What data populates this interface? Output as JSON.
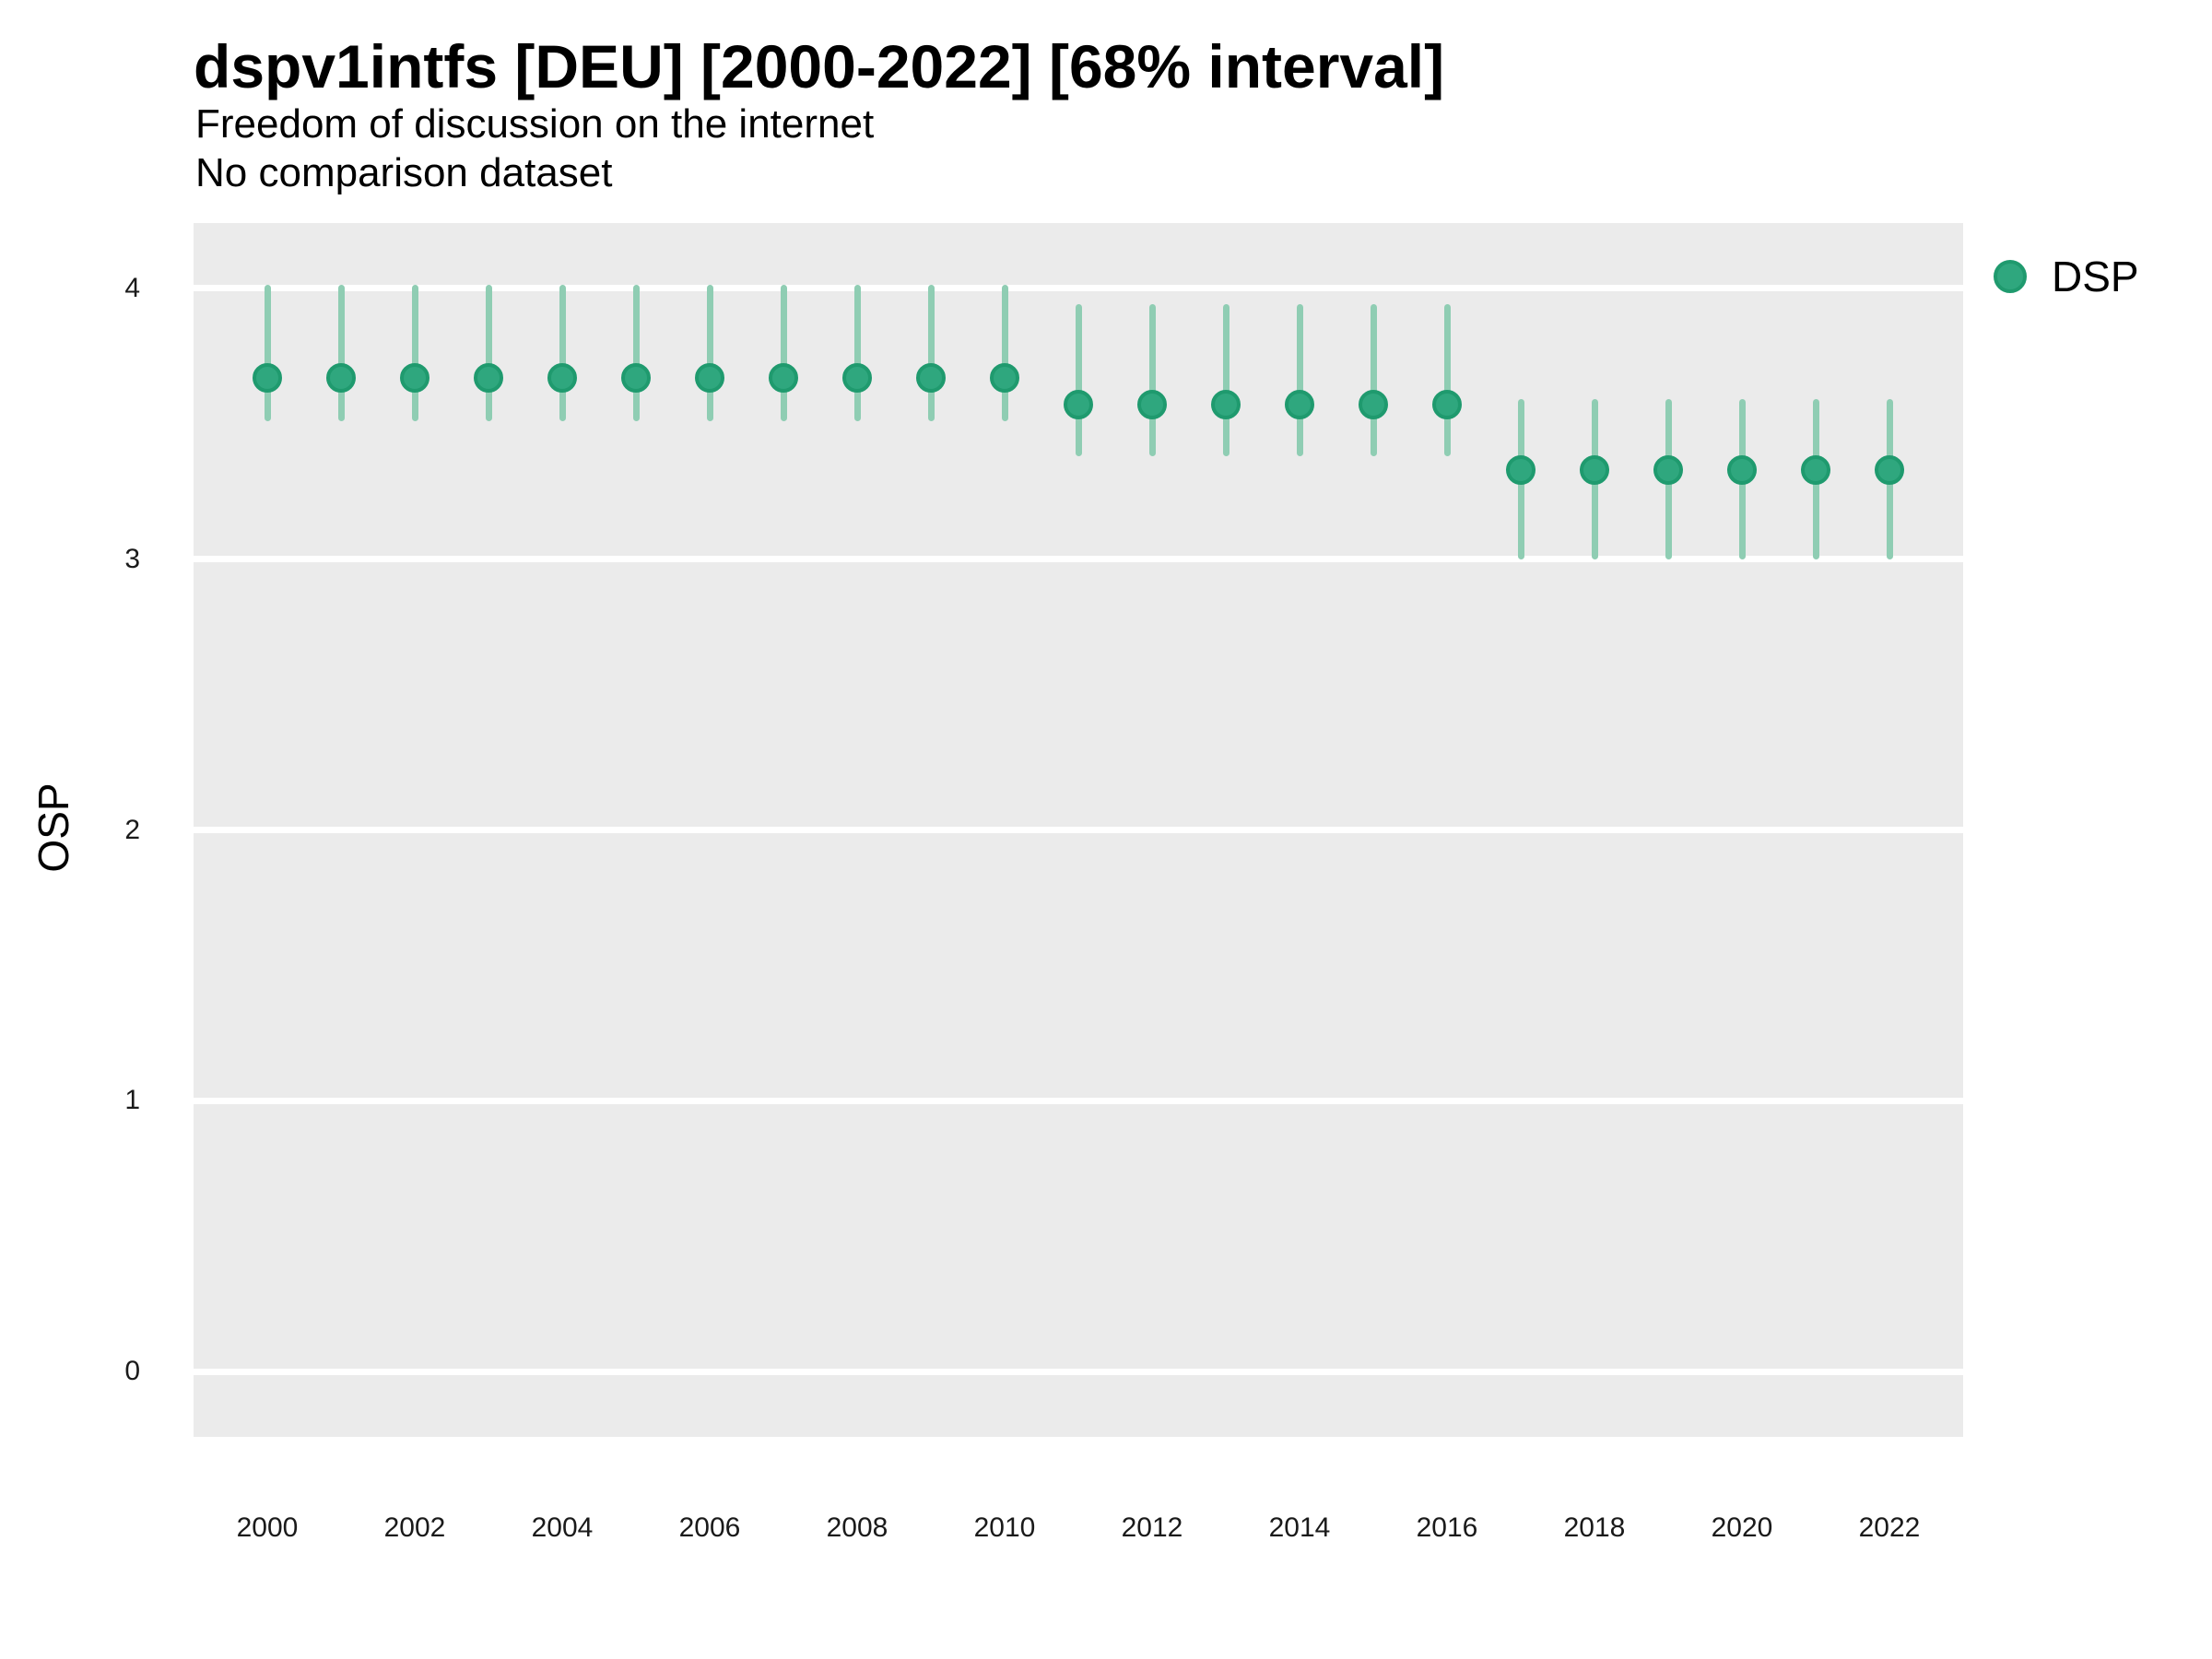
{
  "header": {
    "title": "dspv1intfs [DEU] [2000-2022] [68% interval]",
    "subtitle": "Freedom of discussion on the internet",
    "comparison_note": "No comparison dataset"
  },
  "legend": {
    "label": "DSP"
  },
  "colors": {
    "point_fill": "#2FA77E",
    "point_stroke": "#1F9A6E",
    "interval": "#8FCDB3",
    "panel_bg": "#EBEBEB",
    "gridline": "#FFFFFF",
    "tick_text": "#1a1a1a"
  },
  "chart_data": {
    "type": "scatter",
    "title": "dspv1intfs [DEU] [2000-2022] [68% interval]",
    "subtitle": "Freedom of discussion on the internet",
    "note": "No comparison dataset",
    "xlabel": "",
    "ylabel": "OSP",
    "legend_position": "right",
    "grid": "major-horizontal",
    "interval_level": "68%",
    "xlim": [
      1999,
      2023
    ],
    "ylim": [
      -0.24,
      4.24
    ],
    "y_ticks": [
      0,
      1,
      2,
      3,
      4
    ],
    "x_tick_labels": [
      "2000",
      "2002",
      "2004",
      "2006",
      "2008",
      "2010",
      "2012",
      "2014",
      "2016",
      "2018",
      "2020",
      "2022"
    ],
    "series": [
      {
        "name": "DSP",
        "x": [
          2000,
          2001,
          2002,
          2003,
          2004,
          2005,
          2006,
          2007,
          2008,
          2009,
          2010,
          2011,
          2012,
          2013,
          2014,
          2015,
          2016,
          2017,
          2018,
          2019,
          2020,
          2021,
          2022
        ],
        "y": [
          3.67,
          3.67,
          3.67,
          3.67,
          3.67,
          3.67,
          3.67,
          3.67,
          3.67,
          3.67,
          3.67,
          3.57,
          3.57,
          3.57,
          3.57,
          3.57,
          3.57,
          3.33,
          3.33,
          3.33,
          3.33,
          3.33,
          3.33
        ],
        "y_lo": [
          3.52,
          3.52,
          3.52,
          3.52,
          3.52,
          3.52,
          3.52,
          3.52,
          3.52,
          3.52,
          3.52,
          3.39,
          3.39,
          3.39,
          3.39,
          3.39,
          3.39,
          3.01,
          3.01,
          3.01,
          3.01,
          3.01,
          3.01
        ],
        "y_hi": [
          4.0,
          4.0,
          4.0,
          4.0,
          4.0,
          4.0,
          4.0,
          4.0,
          4.0,
          4.0,
          4.0,
          3.93,
          3.93,
          3.93,
          3.93,
          3.93,
          3.93,
          3.58,
          3.58,
          3.58,
          3.58,
          3.58,
          3.58
        ]
      }
    ]
  }
}
